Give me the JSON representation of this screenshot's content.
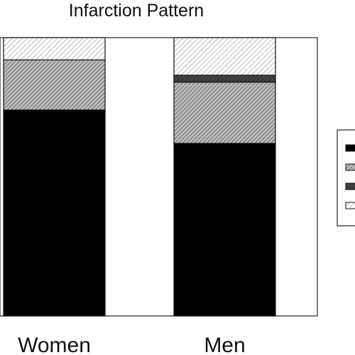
{
  "chart_data": {
    "type": "bar",
    "stacked": true,
    "title": "Infarction Pattern",
    "xlabel": "",
    "ylabel": "",
    "ylim": [
      0,
      1
    ],
    "categories": [
      "Women",
      "Men"
    ],
    "series": [
      {
        "values": [
          0.74,
          0.62
        ],
        "color": "#000000"
      },
      {
        "values": [
          0.18,
          0.22
        ],
        "color": "#a9a9a9"
      },
      {
        "values": [
          0.0,
          0.025
        ],
        "color": "#555555"
      },
      {
        "values": [
          0.08,
          0.135
        ],
        "color": "#e2e2e2"
      }
    ],
    "legend": {
      "position": "right",
      "entries": 4
    },
    "grid": false
  }
}
